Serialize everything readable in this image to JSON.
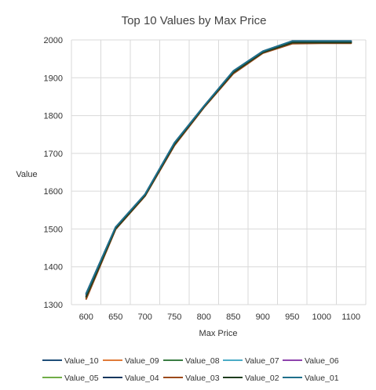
{
  "chart_data": {
    "type": "line",
    "title": "Top 10 Values by Max Price",
    "xlabel": "Max Price",
    "ylabel": "Value",
    "x": [
      600,
      650,
      700,
      750,
      800,
      850,
      900,
      950,
      1000,
      1100
    ],
    "xlim": [
      575,
      1125
    ],
    "ylim": [
      1300,
      2000
    ],
    "yticks": [
      1300,
      1400,
      1500,
      1600,
      1700,
      1800,
      1900,
      2000
    ],
    "grid": true,
    "legend_position": "bottom",
    "series": [
      {
        "name": "Value_10",
        "color": "#1f4e79",
        "values": [
          1330,
          1505,
          1592,
          1728,
          1825,
          1918,
          1970,
          1997,
          1997,
          1997
        ]
      },
      {
        "name": "Value_09",
        "color": "#e07b39",
        "values": [
          1318,
          1500,
          1588,
          1722,
          1822,
          1912,
          1966,
          1991,
          1992,
          1992
        ]
      },
      {
        "name": "Value_08",
        "color": "#3a7d44",
        "values": [
          1322,
          1502,
          1590,
          1725,
          1823,
          1915,
          1968,
          1993,
          1994,
          1994
        ]
      },
      {
        "name": "Value_07",
        "color": "#4bacc6",
        "values": [
          1326,
          1503,
          1591,
          1726,
          1824,
          1916,
          1969,
          1995,
          1995,
          1995
        ]
      },
      {
        "name": "Value_06",
        "color": "#8e44ad",
        "values": [
          1324,
          1502,
          1590,
          1725,
          1823,
          1915,
          1968,
          1994,
          1994,
          1994
        ]
      },
      {
        "name": "Value_05",
        "color": "#70ad47",
        "values": [
          1320,
          1501,
          1589,
          1723,
          1822,
          1913,
          1967,
          1992,
          1993,
          1993
        ]
      },
      {
        "name": "Value_04",
        "color": "#17375e",
        "values": [
          1328,
          1504,
          1591,
          1727,
          1824,
          1917,
          1969,
          1996,
          1996,
          1996
        ]
      },
      {
        "name": "Value_03",
        "color": "#9c4a1a",
        "values": [
          1315,
          1499,
          1587,
          1721,
          1821,
          1911,
          1965,
          1990,
          1991,
          1991
        ]
      },
      {
        "name": "Value_02",
        "color": "#1e3d1e",
        "values": [
          1321,
          1501,
          1589,
          1724,
          1823,
          1914,
          1967,
          1993,
          1993,
          1993
        ]
      },
      {
        "name": "Value_01",
        "color": "#1f6f8b",
        "values": [
          1329,
          1505,
          1592,
          1728,
          1825,
          1918,
          1970,
          1997,
          1997,
          1997
        ]
      }
    ]
  }
}
